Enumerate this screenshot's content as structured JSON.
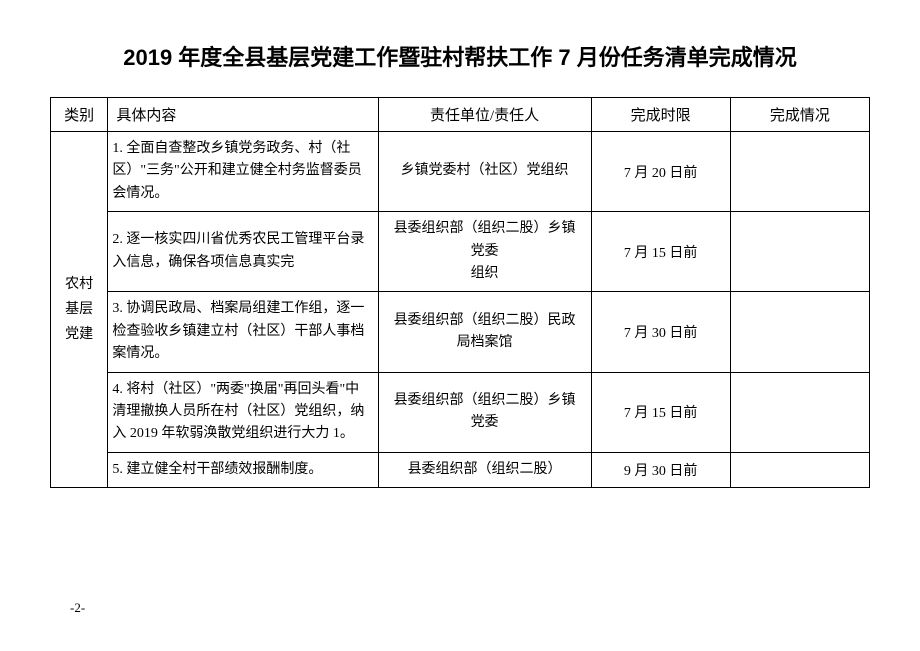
{
  "title": "2019 年度全县基层党建工作暨驻村帮扶工作 7 月份任务清单完成情况",
  "headers": {
    "category": "类别",
    "content": "具体内容",
    "responsible": "责任单位/责任人",
    "deadline": "完成时限",
    "status": "完成情况"
  },
  "category": "农村基层党建",
  "rows": [
    {
      "content": "1. 全面自查整改乡镇党务政务、村（社区）\"三务\"公开和建立健全村务监督委员会情况。",
      "responsible": "乡镇党委村（社区）党组织",
      "deadline": "7 月 20 日前",
      "status": ""
    },
    {
      "content": "2. 逐一核实四川省优秀农民工管理平台录入信息，确保各项信息真实完",
      "responsible": "县委组织部（组织二股）乡镇党委\n组织",
      "deadline": "7 月 15 日前",
      "status": ""
    },
    {
      "content": "3. 协调民政局、档案局组建工作组，逐一检查验收乡镇建立村（社区）干部人事档案情况。",
      "responsible": "县委组织部（组织二股）民政局档案馆",
      "deadline": "7 月 30 日前",
      "status": ""
    },
    {
      "content": "4. 将村（社区）\"两委\"换届\"再回头看\"中清理撤换人员所在村（社区）党组织，纳入 2019 年软弱涣散党组织进行大力 1。",
      "responsible": "县委组织部（组织二股）乡镇党委",
      "deadline": "7 月 15 日前",
      "status": ""
    },
    {
      "content": "5. 建立健全村干部绩效报酬制度。",
      "responsible": "县委组织部（组织二股）",
      "deadline": "9 月 30 日前",
      "status": ""
    }
  ],
  "pageNumber": "-2-"
}
